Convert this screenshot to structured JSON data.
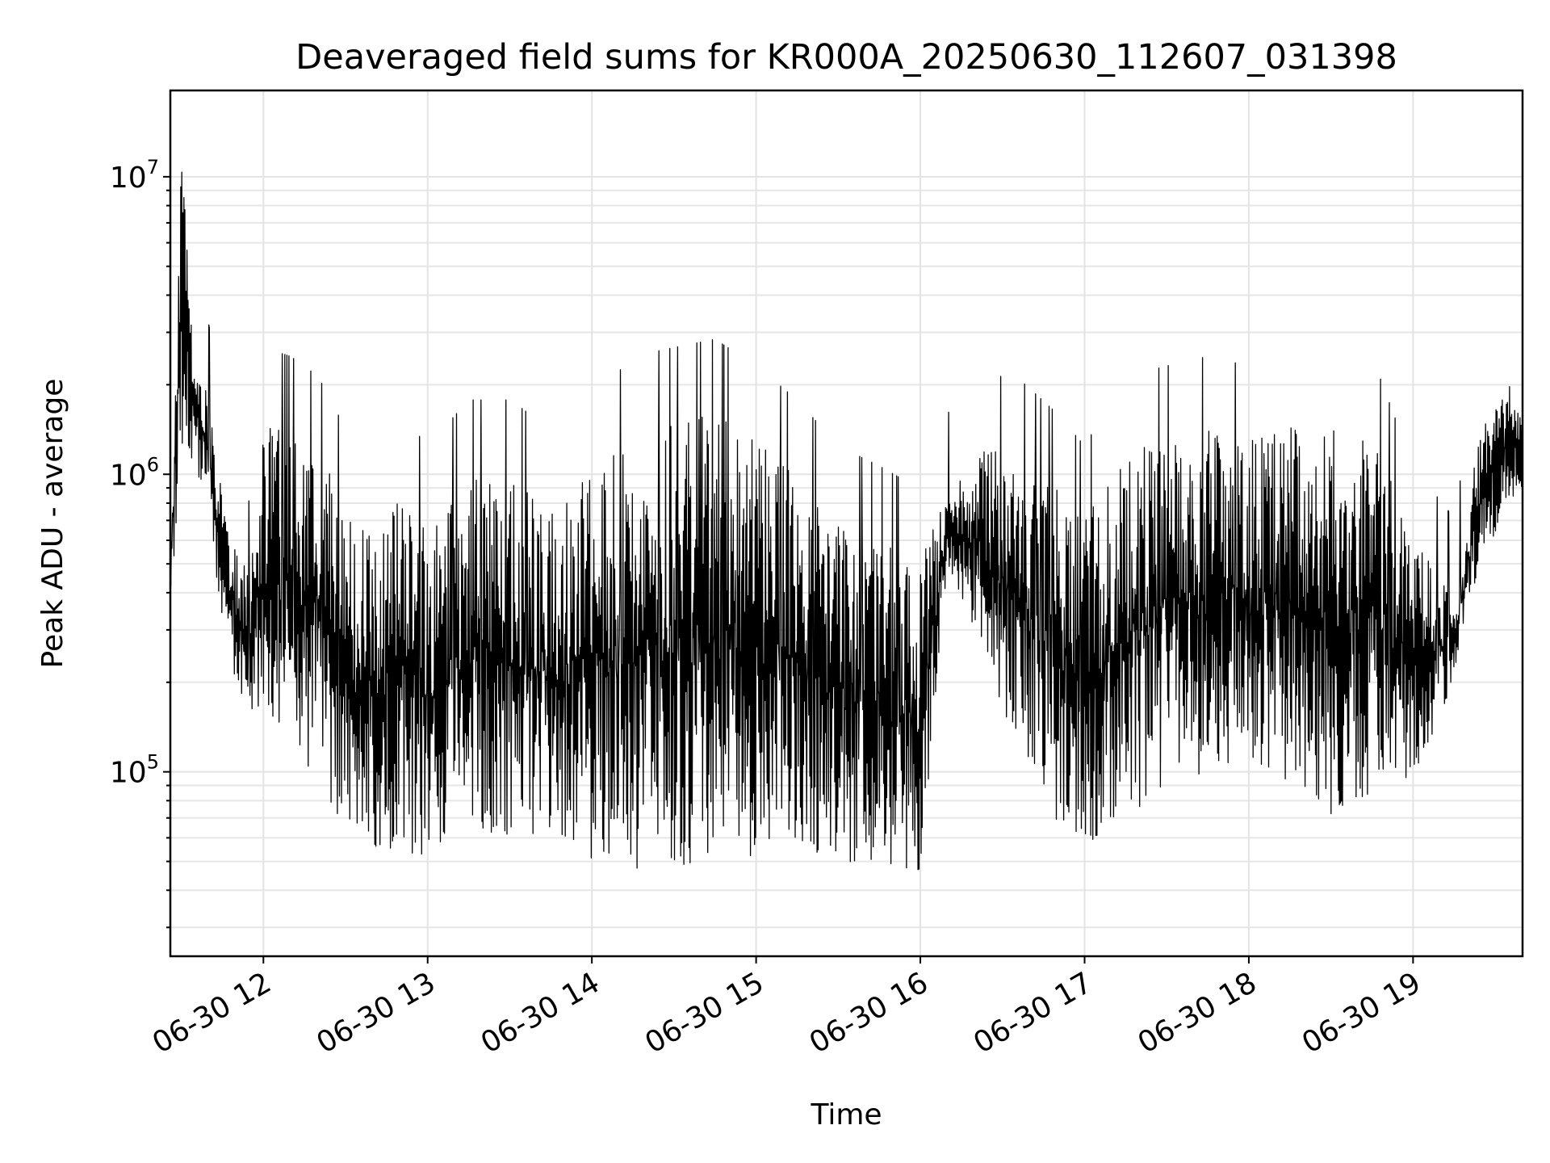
{
  "chart_data": {
    "type": "line",
    "title": "Deaveraged field sums for KR000A_20250630_112607_031398",
    "xlabel": "Time",
    "ylabel": "Peak ADU - average",
    "yscale": "log",
    "ylim": [
      24000,
      19500000
    ],
    "xlim": [
      "06-30 11:26",
      "06-30 19:40"
    ],
    "x_ticks": [
      {
        "t": "06-30 12:00",
        "label": "06-30 12"
      },
      {
        "t": "06-30 13:00",
        "label": "06-30 13"
      },
      {
        "t": "06-30 14:00",
        "label": "06-30 14"
      },
      {
        "t": "06-30 15:00",
        "label": "06-30 15"
      },
      {
        "t": "06-30 16:00",
        "label": "06-30 16"
      },
      {
        "t": "06-30 17:00",
        "label": "06-30 17"
      },
      {
        "t": "06-30 18:00",
        "label": "06-30 18"
      },
      {
        "t": "06-30 19:00",
        "label": "06-30 19"
      }
    ],
    "y_ticks": [
      {
        "value": 100000,
        "base": "10",
        "exp": "5"
      },
      {
        "value": 1000000,
        "base": "10",
        "exp": "6"
      },
      {
        "value": 10000000,
        "base": "10",
        "exp": "7"
      }
    ],
    "grid": true,
    "legend": "none",
    "line_color": "#000000",
    "series": [
      {
        "x": [
          "06-30 11:26",
          "06-30 11:30",
          "06-30 11:35",
          "06-30 11:40",
          "06-30 11:45",
          "06-30 11:50",
          "06-30 11:55",
          "06-30 12:00",
          "06-30 12:10",
          "06-30 12:20",
          "06-30 12:30",
          "06-30 12:40",
          "06-30 12:50",
          "06-30 13:00",
          "06-30 13:15",
          "06-30 13:30",
          "06-30 13:45",
          "06-30 14:00",
          "06-30 14:15",
          "06-30 14:30",
          "06-30 14:45",
          "06-30 15:00",
          "06-30 15:15",
          "06-30 15:30",
          "06-30 15:45",
          "06-30 16:00",
          "06-30 16:10",
          "06-30 16:20",
          "06-30 16:35",
          "06-30 16:50",
          "06-30 17:00",
          "06-30 17:15",
          "06-30 17:30",
          "06-30 17:45",
          "06-30 18:00",
          "06-30 18:15",
          "06-30 18:30",
          "06-30 18:45",
          "06-30 19:00",
          "06-30 19:15",
          "06-30 19:25",
          "06-30 19:35",
          "06-30 19:40"
        ],
        "hi": [
          500000,
          12000000,
          2500000,
          1800000,
          1000000,
          600000,
          450000,
          1500000,
          1400000,
          1200000,
          800000,
          600000,
          900000,
          700000,
          1000000,
          1000000,
          800000,
          1000000,
          1400000,
          1500000,
          1600000,
          1300000,
          1000000,
          700000,
          600000,
          500000,
          900000,
          1200000,
          1200000,
          900000,
          700000,
          1200000,
          1300000,
          1400000,
          1300000,
          1500000,
          1500000,
          1400000,
          600000,
          400000,
          1500000,
          2000000,
          1500000
        ],
        "lo": [
          350000,
          1200000,
          1100000,
          700000,
          300000,
          200000,
          160000,
          150000,
          110000,
          100000,
          60000,
          55000,
          55000,
          50000,
          65000,
          60000,
          60000,
          50000,
          45000,
          48000,
          50000,
          52000,
          55000,
          50000,
          48000,
          45000,
          500000,
          300000,
          120000,
          60000,
          55000,
          70000,
          90000,
          100000,
          110000,
          90000,
          70000,
          80000,
          90000,
          200000,
          500000,
          800000,
          900000
        ]
      }
    ]
  }
}
